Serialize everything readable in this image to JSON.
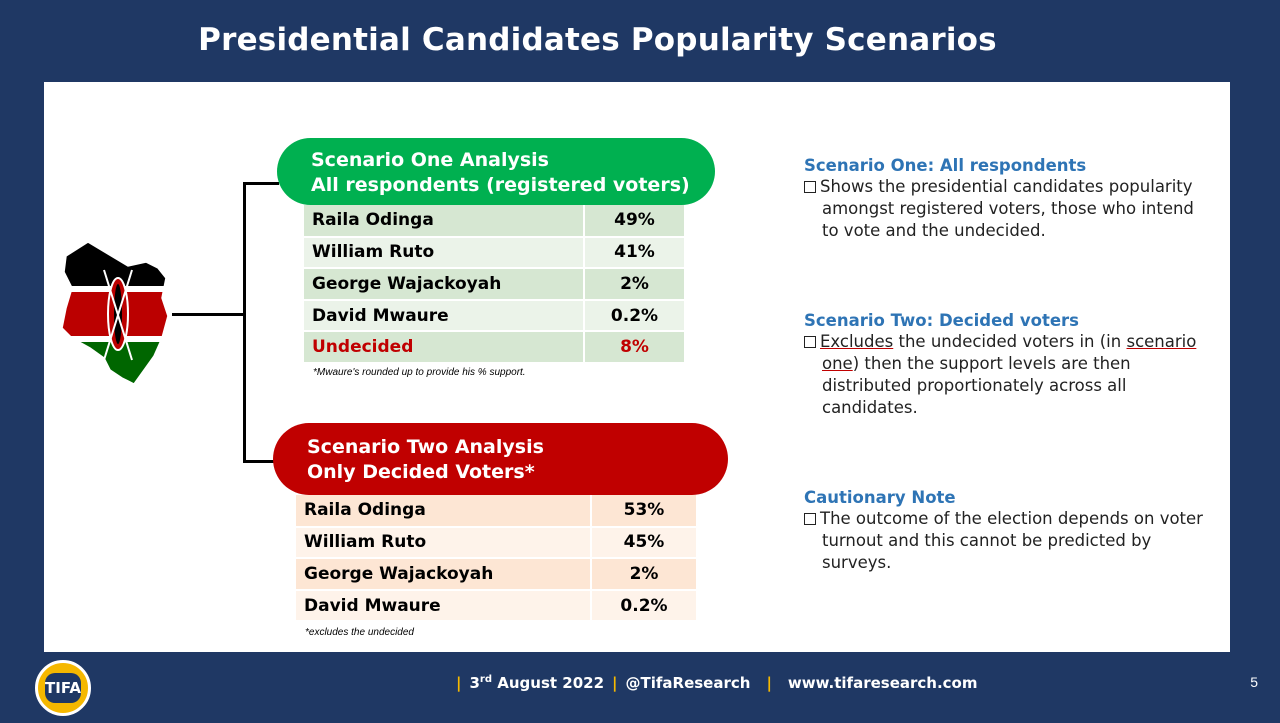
{
  "title": "Presidential Candidates Popularity Scenarios",
  "scenario_one": {
    "heading_line1": "Scenario One Analysis",
    "heading_line2": "All respondents (registered voters)",
    "rows": [
      {
        "name": "Raila Odinga",
        "value": "49%"
      },
      {
        "name": "William Ruto",
        "value": "41%"
      },
      {
        "name": "George Wajackoyah",
        "value": "2%"
      },
      {
        "name": "David Mwaure",
        "value": "0.2%"
      },
      {
        "name": "Undecided",
        "value": "8%"
      }
    ],
    "note": "*Mwaure's rounded up to provide his % support."
  },
  "scenario_two": {
    "heading_line1": "Scenario Two Analysis",
    "heading_line2": "Only Decided Voters*",
    "rows": [
      {
        "name": "Raila Odinga",
        "value": "53%"
      },
      {
        "name": "William Ruto",
        "value": "45%"
      },
      {
        "name": "George Wajackoyah",
        "value": "2%"
      },
      {
        "name": "David Mwaure",
        "value": "0.2%"
      }
    ],
    "note": "*excludes the undecided"
  },
  "side": {
    "s1_title": "Scenario One: All respondents",
    "s1_text": "Shows the presidential candidates popularity amongst registered voters, those who intend to vote and the undecided.",
    "s2_title": "Scenario Two: Decided voters",
    "s2_text_u": "Excludes",
    "s2_text_mid": " the undecided voters in (in ",
    "s2_text_u2": "scenario one",
    "s2_text_rest": ") then the support levels are then distributed proportionately across all candidates.",
    "s3_title": "Cautionary Note",
    "s3_text": "The outcome of the election depends on voter turnout and this cannot be predicted by surveys."
  },
  "footer": {
    "date_day": "3",
    "date_sup": "rd",
    "date_rest": " August 2022",
    "handle": "@TifaResearch",
    "website": "www.tifaresearch.com"
  },
  "page_number": "5",
  "logo_text": "TIFA",
  "colors": {
    "navy": "#1f3864",
    "green": "#00b050",
    "red": "#c00000",
    "blue_heading": "#2e74b5",
    "gold": "#f5b800"
  }
}
